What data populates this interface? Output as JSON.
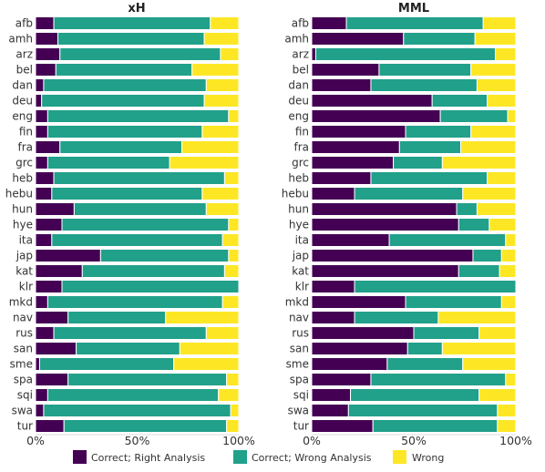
{
  "colors": {
    "correct_right": "#440154",
    "correct_wrong": "#21a08a",
    "wrong": "#fde725"
  },
  "legend": {
    "items": [
      "Correct; Right Analysis",
      "Correct; Wrong Analysis",
      "Wrong"
    ]
  },
  "chart_data": [
    {
      "type": "bar",
      "stacked": true,
      "orientation": "horizontal",
      "title": "xH",
      "xlim": [
        0,
        100
      ],
      "x_ticks": [
        "0%",
        "50%",
        "100%"
      ],
      "categories": [
        "afb",
        "amh",
        "arz",
        "bel",
        "dan",
        "deu",
        "eng",
        "fin",
        "fra",
        "grc",
        "heb",
        "hebu",
        "hun",
        "hye",
        "ita",
        "jap",
        "kat",
        "klr",
        "mkd",
        "nav",
        "rus",
        "san",
        "sme",
        "spa",
        "sqi",
        "swa",
        "tur"
      ],
      "series": [
        {
          "name": "Correct; Right Analysis",
          "values": [
            9,
            11,
            12,
            10,
            4,
            3,
            6,
            6,
            12,
            6,
            9,
            8,
            19,
            13,
            8,
            32,
            23,
            13,
            6,
            16,
            9,
            20,
            2,
            16,
            6,
            4,
            14
          ]
        },
        {
          "name": "Correct; Wrong Analysis",
          "values": [
            77,
            72,
            79,
            67,
            80,
            80,
            89,
            76,
            60,
            60,
            84,
            74,
            65,
            82,
            84,
            63,
            70,
            87,
            86,
            48,
            75,
            51,
            66,
            78,
            84,
            92,
            80
          ]
        },
        {
          "name": "Wrong",
          "values": [
            14,
            17,
            9,
            23,
            16,
            17,
            5,
            18,
            28,
            34,
            7,
            18,
            16,
            5,
            8,
            5,
            7,
            0,
            8,
            36,
            16,
            29,
            32,
            6,
            10,
            4,
            6
          ]
        }
      ]
    },
    {
      "type": "bar",
      "stacked": true,
      "orientation": "horizontal",
      "title": "MML",
      "xlim": [
        0,
        100
      ],
      "x_ticks": [
        "0%",
        "50%",
        "100%"
      ],
      "categories": [
        "afb",
        "amh",
        "arz",
        "bel",
        "dan",
        "deu",
        "eng",
        "fin",
        "fra",
        "grc",
        "heb",
        "hebu",
        "hun",
        "hye",
        "ita",
        "jap",
        "kat",
        "klr",
        "mkd",
        "nav",
        "rus",
        "san",
        "sme",
        "spa",
        "sqi",
        "swa",
        "tur"
      ],
      "series": [
        {
          "name": "Correct; Right Analysis",
          "values": [
            17,
            45,
            2,
            33,
            29,
            59,
            63,
            46,
            43,
            40,
            29,
            21,
            71,
            72,
            38,
            79,
            72,
            21,
            46,
            21,
            50,
            47,
            37,
            29,
            19,
            18,
            30
          ]
        },
        {
          "name": "Correct; Wrong Analysis",
          "values": [
            67,
            35,
            88,
            45,
            52,
            27,
            33,
            32,
            30,
            24,
            57,
            53,
            10,
            15,
            57,
            14,
            20,
            79,
            47,
            41,
            32,
            17,
            37,
            66,
            63,
            73,
            61
          ]
        },
        {
          "name": "Wrong",
          "values": [
            16,
            20,
            10,
            22,
            19,
            14,
            4,
            22,
            27,
            36,
            14,
            26,
            19,
            13,
            5,
            7,
            8,
            0,
            7,
            38,
            18,
            36,
            26,
            5,
            18,
            9,
            9
          ]
        }
      ]
    }
  ]
}
